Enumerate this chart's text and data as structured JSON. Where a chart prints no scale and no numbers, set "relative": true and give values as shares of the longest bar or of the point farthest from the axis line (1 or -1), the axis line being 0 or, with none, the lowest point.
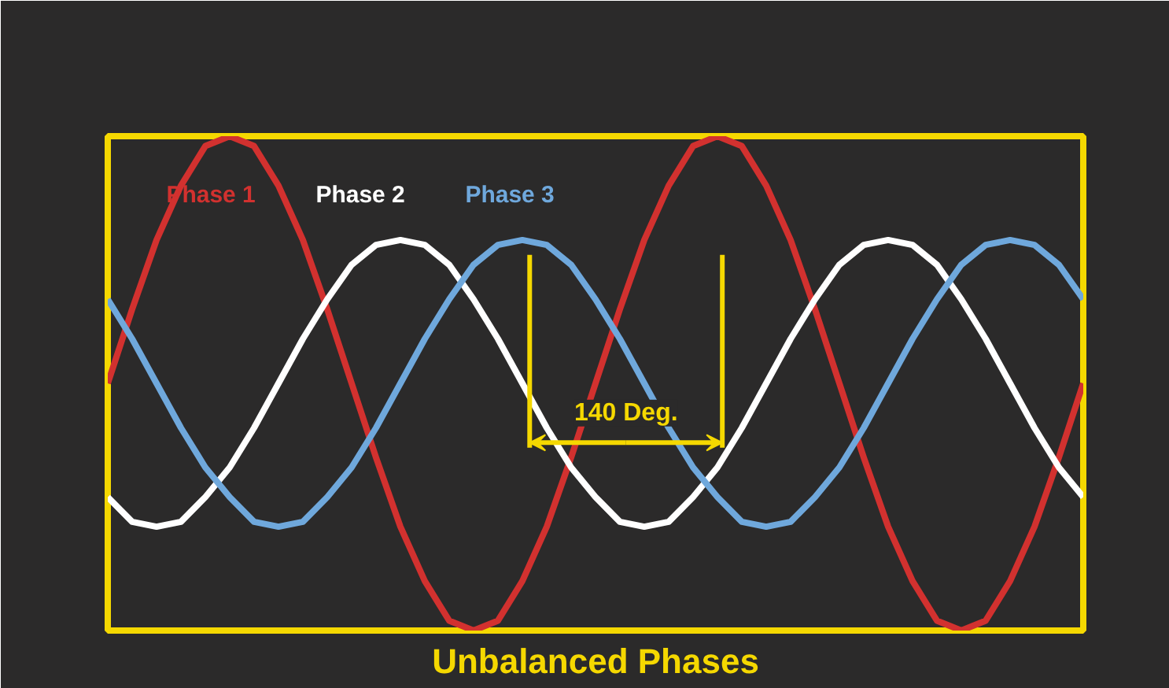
{
  "chart_data": {
    "type": "line",
    "title": "Unbalanced Phases",
    "relative": true,
    "grid": false,
    "legend": "top left",
    "marker": "none",
    "line_style": "solid",
    "categories": [
      null,
      null,
      null,
      null,
      null,
      null,
      null,
      null,
      null,
      null,
      null,
      null,
      null,
      null,
      null,
      null,
      null,
      null,
      null,
      null,
      null,
      null,
      null,
      null,
      null,
      null,
      null,
      null,
      null,
      null,
      null,
      null,
      null,
      null,
      null,
      null,
      null,
      null,
      null,
      null,
      null
    ],
    "series": [
      {
        "name": "Phase 1",
        "color": "#d2312f",
        "values": [
          0.5,
          0.65,
          0.79,
          0.9,
          0.98,
          1,
          0.98,
          0.9,
          0.79,
          0.65,
          0.5,
          0.35,
          0.21,
          0.1,
          0.02,
          0,
          0.02,
          0.1,
          0.21,
          0.35,
          0.5,
          0.65,
          0.79,
          0.9,
          0.98,
          1,
          0.98,
          0.9,
          0.79,
          0.65,
          0.5,
          0.35,
          0.21,
          0.1,
          0.02,
          0,
          0.02,
          0.1,
          0.21,
          0.35,
          0.5
        ]
      },
      {
        "name": "Phase 2",
        "color": "#ffffff",
        "values": [
          0.27,
          0.22,
          0.21,
          0.22,
          0.27,
          0.33,
          0.41,
          0.5,
          0.59,
          0.67,
          0.74,
          0.78,
          0.79,
          0.78,
          0.74,
          0.67,
          0.59,
          0.5,
          0.41,
          0.33,
          0.27,
          0.22,
          0.21,
          0.22,
          0.27,
          0.33,
          0.41,
          0.5,
          0.59,
          0.67,
          0.74,
          0.78,
          0.79,
          0.78,
          0.74,
          0.67,
          0.59,
          0.5,
          0.41,
          0.33,
          0.27
        ]
      },
      {
        "name": "Phase 3",
        "color": "#6fa8dc",
        "values": [
          0.67,
          0.59,
          0.5,
          0.41,
          0.33,
          0.27,
          0.22,
          0.21,
          0.22,
          0.27,
          0.33,
          0.41,
          0.5,
          0.59,
          0.67,
          0.74,
          0.78,
          0.79,
          0.78,
          0.74,
          0.67,
          0.59,
          0.5,
          0.41,
          0.33,
          0.27,
          0.22,
          0.21,
          0.22,
          0.27,
          0.33,
          0.41,
          0.5,
          0.59,
          0.67,
          0.74,
          0.78,
          0.79,
          0.78,
          0.74,
          0.67
        ]
      }
    ],
    "annotations": [
      "140 Deg."
    ]
  }
}
